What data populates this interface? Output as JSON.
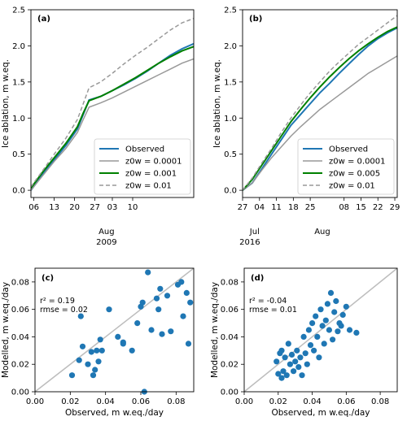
{
  "chart_data": [
    {
      "id": "a",
      "type": "line",
      "panel_label": "(a)",
      "ylabel": "Ice ablation, m w.eq.",
      "ylim": [
        -0.1,
        2.5
      ],
      "yticks": [
        "0.0",
        "0.5",
        "1.0",
        "1.5",
        "2.0",
        "2.5"
      ],
      "xlim": [
        0,
        56
      ],
      "xticks": [
        {
          "x": 1,
          "label": "06"
        },
        {
          "x": 8,
          "label": "13"
        },
        {
          "x": 15,
          "label": "20"
        },
        {
          "x": 22,
          "label": "27"
        },
        {
          "x": 28,
          "label": "03"
        },
        {
          "x": 35,
          "label": "10"
        }
      ],
      "month_labels": [
        {
          "x": 26,
          "label": "Aug",
          "row": 1
        },
        {
          "x": 26,
          "label": "2009",
          "row": 2
        }
      ],
      "legend": "bottom-right",
      "series": [
        {
          "name": "Observed",
          "color": "#1f77b4",
          "width": 2,
          "dash": "",
          "x": [
            0,
            4,
            8,
            12,
            16,
            18,
            20,
            24,
            28,
            32,
            36,
            40,
            44,
            48,
            52,
            56
          ],
          "y": [
            0.0,
            0.22,
            0.42,
            0.62,
            0.85,
            1.05,
            1.25,
            1.3,
            1.38,
            1.46,
            1.55,
            1.65,
            1.76,
            1.87,
            1.96,
            2.03
          ]
        },
        {
          "name": "z0w = 0.0001",
          "color": "#999999",
          "width": 1.5,
          "dash": "",
          "x": [
            0,
            4,
            8,
            12,
            16,
            18,
            20,
            24,
            28,
            32,
            36,
            40,
            44,
            48,
            52,
            56
          ],
          "y": [
            0.0,
            0.2,
            0.4,
            0.58,
            0.8,
            0.98,
            1.15,
            1.21,
            1.28,
            1.36,
            1.44,
            1.52,
            1.6,
            1.68,
            1.76,
            1.82
          ]
        },
        {
          "name": "z0w = 0.001",
          "color": "#008000",
          "width": 2,
          "dash": "",
          "x": [
            0,
            4,
            8,
            12,
            16,
            18,
            20,
            24,
            28,
            32,
            36,
            40,
            44,
            48,
            52,
            56
          ],
          "y": [
            0.03,
            0.25,
            0.45,
            0.65,
            0.88,
            1.07,
            1.24,
            1.3,
            1.38,
            1.47,
            1.56,
            1.66,
            1.76,
            1.85,
            1.93,
            1.99
          ]
        },
        {
          "name": "z0w = 0.01",
          "color": "#999999",
          "width": 1.5,
          "dash": "5,3",
          "x": [
            0,
            4,
            8,
            12,
            16,
            18,
            20,
            24,
            28,
            32,
            36,
            40,
            44,
            48,
            52,
            56
          ],
          "y": [
            0.05,
            0.27,
            0.5,
            0.72,
            0.98,
            1.2,
            1.42,
            1.5,
            1.62,
            1.75,
            1.87,
            1.98,
            2.1,
            2.22,
            2.32,
            2.38
          ]
        }
      ]
    },
    {
      "id": "b",
      "type": "line",
      "panel_label": "(b)",
      "ylabel": "Ice ablation, m w.eq.",
      "ylim": [
        -0.1,
        2.5
      ],
      "yticks": [
        "0.0",
        "0.5",
        "1.0",
        "1.5",
        "2.0",
        "2.5"
      ],
      "xlim": [
        0,
        64
      ],
      "xticks": [
        {
          "x": 0,
          "label": "27"
        },
        {
          "x": 7,
          "label": "04"
        },
        {
          "x": 14,
          "label": "11"
        },
        {
          "x": 21,
          "label": "18"
        },
        {
          "x": 28,
          "label": "25"
        },
        {
          "x": 42,
          "label": "08"
        },
        {
          "x": 49,
          "label": "15"
        },
        {
          "x": 56,
          "label": "22"
        },
        {
          "x": 63,
          "label": "29"
        }
      ],
      "month_labels": [
        {
          "x": 5,
          "label": "Jul",
          "row": 1
        },
        {
          "x": 33,
          "label": "Aug",
          "row": 1
        },
        {
          "x": 3,
          "label": "2016",
          "row": 2
        }
      ],
      "legend": "bottom-right",
      "series": [
        {
          "name": "Observed",
          "color": "#1f77b4",
          "width": 2,
          "dash": "",
          "x": [
            0,
            4,
            8,
            12,
            16,
            20,
            24,
            28,
            32,
            36,
            40,
            44,
            48,
            52,
            56,
            60,
            64
          ],
          "y": [
            0.0,
            0.1,
            0.3,
            0.5,
            0.7,
            0.9,
            1.05,
            1.2,
            1.35,
            1.48,
            1.62,
            1.75,
            1.88,
            2.0,
            2.1,
            2.18,
            2.25
          ]
        },
        {
          "name": "z0w = 0.0001",
          "color": "#999999",
          "width": 1.5,
          "dash": "",
          "x": [
            0,
            4,
            8,
            12,
            16,
            20,
            24,
            28,
            32,
            36,
            40,
            44,
            48,
            52,
            56,
            60,
            64
          ],
          "y": [
            0.0,
            0.1,
            0.28,
            0.45,
            0.6,
            0.75,
            0.88,
            1.0,
            1.12,
            1.22,
            1.32,
            1.42,
            1.52,
            1.62,
            1.7,
            1.78,
            1.86
          ]
        },
        {
          "name": "z0w = 0.005",
          "color": "#008000",
          "width": 2,
          "dash": "",
          "x": [
            0,
            4,
            8,
            12,
            16,
            20,
            24,
            28,
            32,
            36,
            40,
            44,
            48,
            52,
            56,
            60,
            64
          ],
          "y": [
            0.0,
            0.15,
            0.35,
            0.55,
            0.75,
            0.95,
            1.12,
            1.28,
            1.43,
            1.57,
            1.7,
            1.82,
            1.93,
            2.03,
            2.12,
            2.2,
            2.26
          ]
        },
        {
          "name": "z0w = 0.01",
          "color": "#999999",
          "width": 1.5,
          "dash": "5,3",
          "x": [
            0,
            4,
            8,
            12,
            16,
            20,
            24,
            28,
            32,
            36,
            40,
            44,
            48,
            52,
            56,
            60,
            64
          ],
          "y": [
            0.0,
            0.17,
            0.38,
            0.58,
            0.8,
            1.0,
            1.18,
            1.35,
            1.5,
            1.65,
            1.78,
            1.9,
            2.02,
            2.12,
            2.22,
            2.32,
            2.42
          ]
        }
      ]
    },
    {
      "id": "c",
      "type": "scatter",
      "panel_label": "(c)",
      "xlabel": "Observed, m w.eq./day",
      "ylabel": "Modelled, m w.eq./day",
      "xlim": [
        0,
        0.09
      ],
      "ylim": [
        0,
        0.09
      ],
      "ticks": [
        "0.00",
        "0.02",
        "0.04",
        "0.06",
        "0.08"
      ],
      "stats": [
        "r² = 0.19",
        "rmse = 0.02"
      ],
      "color": "#1f77b4",
      "points": [
        [
          0.021,
          0.012
        ],
        [
          0.025,
          0.023
        ],
        [
          0.026,
          0.055
        ],
        [
          0.027,
          0.033
        ],
        [
          0.03,
          0.02
        ],
        [
          0.032,
          0.029
        ],
        [
          0.033,
          0.012
        ],
        [
          0.034,
          0.016
        ],
        [
          0.035,
          0.03
        ],
        [
          0.036,
          0.022
        ],
        [
          0.037,
          0.038
        ],
        [
          0.038,
          0.03
        ],
        [
          0.042,
          0.06
        ],
        [
          0.047,
          0.04
        ],
        [
          0.05,
          0.036
        ],
        [
          0.05,
          0.035
        ],
        [
          0.055,
          0.03
        ],
        [
          0.058,
          0.05
        ],
        [
          0.06,
          0.062
        ],
        [
          0.061,
          0.065
        ],
        [
          0.062,
          0.0
        ],
        [
          0.064,
          0.087
        ],
        [
          0.066,
          0.045
        ],
        [
          0.069,
          0.068
        ],
        [
          0.07,
          0.06
        ],
        [
          0.071,
          0.075
        ],
        [
          0.072,
          0.042
        ],
        [
          0.075,
          0.07
        ],
        [
          0.077,
          0.044
        ],
        [
          0.081,
          0.078
        ],
        [
          0.083,
          0.08
        ],
        [
          0.084,
          0.055
        ],
        [
          0.086,
          0.072
        ],
        [
          0.087,
          0.035
        ],
        [
          0.088,
          0.065
        ]
      ]
    },
    {
      "id": "d",
      "type": "scatter",
      "panel_label": "(d)",
      "xlabel": "Observed, m w.eq./day",
      "ylabel": "Modelled, m w.eq./day",
      "xlim": [
        0,
        0.09
      ],
      "ylim": [
        0,
        0.09
      ],
      "ticks": [
        "0.00",
        "0.02",
        "0.04",
        "0.06",
        "0.08"
      ],
      "stats": [
        "r² = -0.04",
        "rmse = 0.01"
      ],
      "color": "#1f77b4",
      "points": [
        [
          0.019,
          0.022
        ],
        [
          0.02,
          0.013
        ],
        [
          0.021,
          0.028
        ],
        [
          0.022,
          0.01
        ],
        [
          0.022,
          0.03
        ],
        [
          0.023,
          0.015
        ],
        [
          0.024,
          0.025
        ],
        [
          0.025,
          0.012
        ],
        [
          0.026,
          0.035
        ],
        [
          0.027,
          0.02
        ],
        [
          0.028,
          0.027
        ],
        [
          0.029,
          0.015
        ],
        [
          0.03,
          0.022
        ],
        [
          0.031,
          0.03
        ],
        [
          0.032,
          0.018
        ],
        [
          0.033,
          0.025
        ],
        [
          0.034,
          0.012
        ],
        [
          0.035,
          0.04
        ],
        [
          0.036,
          0.028
        ],
        [
          0.037,
          0.02
        ],
        [
          0.038,
          0.045
        ],
        [
          0.039,
          0.034
        ],
        [
          0.04,
          0.05
        ],
        [
          0.041,
          0.03
        ],
        [
          0.042,
          0.055
        ],
        [
          0.043,
          0.04
        ],
        [
          0.044,
          0.025
        ],
        [
          0.045,
          0.06
        ],
        [
          0.046,
          0.048
        ],
        [
          0.047,
          0.035
        ],
        [
          0.048,
          0.052
        ],
        [
          0.049,
          0.064
        ],
        [
          0.05,
          0.045
        ],
        [
          0.051,
          0.072
        ],
        [
          0.052,
          0.038
        ],
        [
          0.053,
          0.058
        ],
        [
          0.054,
          0.066
        ],
        [
          0.055,
          0.044
        ],
        [
          0.056,
          0.05
        ],
        [
          0.057,
          0.048
        ],
        [
          0.058,
          0.056
        ],
        [
          0.06,
          0.062
        ],
        [
          0.062,
          0.045
        ],
        [
          0.066,
          0.043
        ]
      ]
    }
  ]
}
